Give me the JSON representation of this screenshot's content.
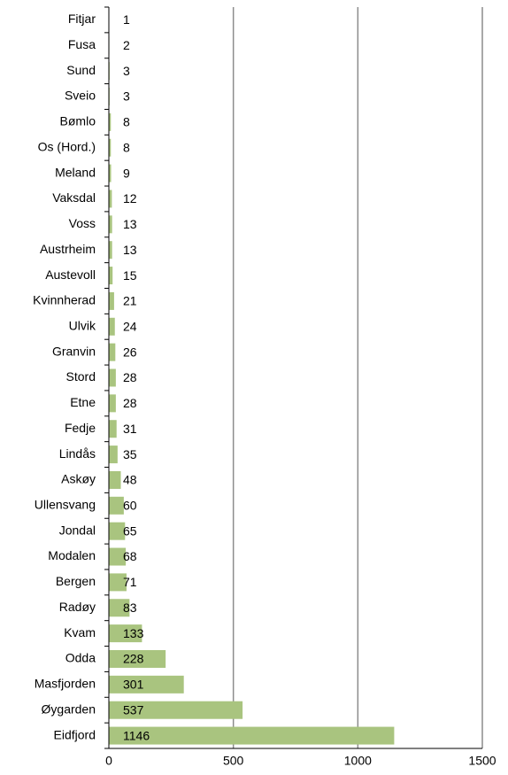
{
  "chart_data": {
    "type": "bar",
    "orientation": "horizontal",
    "categories": [
      "Fitjar",
      "Fusa",
      "Sund",
      "Sveio",
      "Bømlo",
      "Os (Hord.)",
      "Meland",
      "Vaksdal",
      "Voss",
      "Austrheim",
      "Austevoll",
      "Kvinnherad",
      "Ulvik",
      "Granvin",
      "Stord",
      "Etne",
      "Fedje",
      "Lindås",
      "Askøy",
      "Ullensvang",
      "Jondal",
      "Modalen",
      "Bergen",
      "Radøy",
      "Kvam",
      "Odda",
      "Masfjorden",
      "Øygarden",
      "Eidfjord"
    ],
    "values": [
      1,
      2,
      3,
      3,
      8,
      8,
      9,
      12,
      13,
      13,
      15,
      21,
      24,
      26,
      28,
      28,
      31,
      35,
      48,
      60,
      65,
      68,
      71,
      83,
      133,
      228,
      301,
      537,
      1146
    ],
    "color": "#a9c47f",
    "xlim": [
      0,
      1500
    ],
    "xticks": [
      0,
      500,
      1000,
      1500
    ],
    "grid": true
  }
}
